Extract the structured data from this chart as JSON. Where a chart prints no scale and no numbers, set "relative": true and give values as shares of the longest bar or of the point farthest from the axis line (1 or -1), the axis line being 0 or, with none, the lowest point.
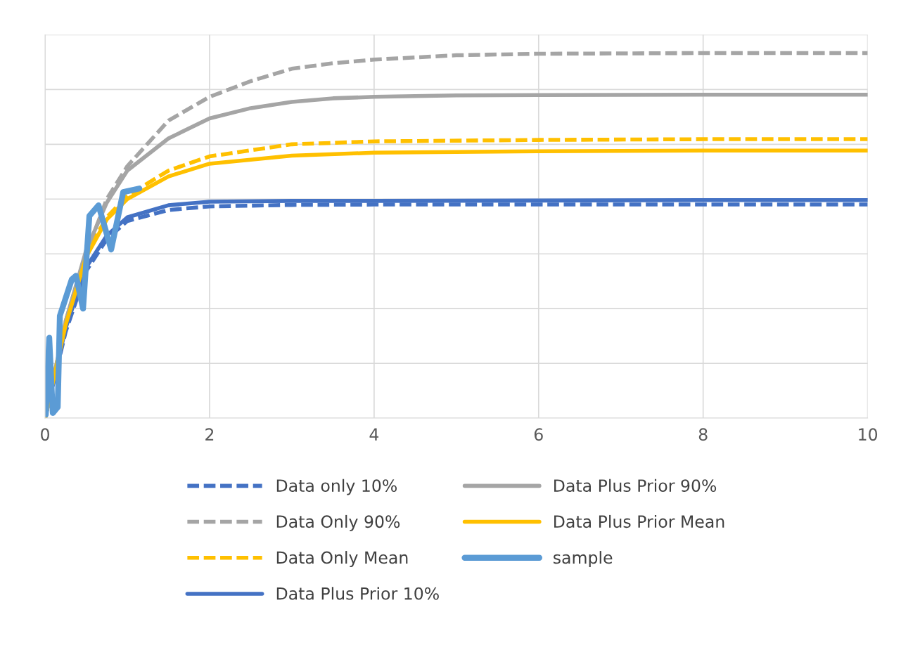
{
  "chart_data": {
    "type": "line",
    "relative": true,
    "xlim": [
      0,
      10
    ],
    "xticks": [
      0,
      2,
      4,
      6,
      8,
      10
    ],
    "grid": true,
    "legend": "bottom",
    "tick_labels": "x",
    "marker": "none",
    "series": [
      {
        "name": "Data only 10%",
        "color": "#4472c4",
        "line_style": "dashed",
        "x": [
          0,
          0.25,
          0.5,
          0.75,
          1,
          1.5,
          2,
          3,
          4,
          6,
          8,
          10
        ],
        "values": [
          0,
          0.236,
          0.403,
          0.49,
          0.54,
          0.57,
          0.58,
          0.584,
          0.585,
          0.585,
          0.585,
          0.585
        ]
      },
      {
        "name": "Data Only 90%",
        "color": "#a5a5a5",
        "line_style": "dashed",
        "x": [
          0,
          0.25,
          0.5,
          0.75,
          1,
          1.5,
          2,
          2.5,
          3,
          3.5,
          4,
          5,
          6,
          8,
          10
        ],
        "values": [
          0,
          0.25,
          0.45,
          0.6,
          0.69,
          0.815,
          0.88,
          0.923,
          0.957,
          0.972,
          0.982,
          0.994,
          0.998,
          1,
          1
        ]
      },
      {
        "name": "Data Only Mean",
        "color": "#ffc000",
        "line_style": "dashed",
        "x": [
          0,
          0.25,
          0.5,
          0.75,
          1,
          1.5,
          2,
          3,
          4,
          6,
          8,
          10
        ],
        "values": [
          0,
          0.265,
          0.45,
          0.55,
          0.609,
          0.678,
          0.717,
          0.75,
          0.758,
          0.762,
          0.764,
          0.764
        ]
      },
      {
        "name": "Data Plus Prior 10%",
        "color": "#4472c4",
        "line_style": "solid",
        "x": [
          0,
          0.25,
          0.5,
          0.75,
          1,
          1.5,
          2,
          3,
          4,
          6,
          8,
          10
        ],
        "values": [
          0,
          0.246,
          0.413,
          0.5,
          0.55,
          0.583,
          0.593,
          0.595,
          0.595,
          0.596,
          0.597,
          0.597
        ]
      },
      {
        "name": "Data Plus Prior 90%",
        "color": "#a5a5a5",
        "line_style": "solid",
        "x": [
          0,
          0.25,
          0.5,
          0.75,
          1,
          1.5,
          2,
          2.5,
          3,
          3.5,
          4,
          5,
          6,
          8,
          10
        ],
        "values": [
          0,
          0.265,
          0.46,
          0.59,
          0.678,
          0.766,
          0.821,
          0.849,
          0.866,
          0.876,
          0.88,
          0.884,
          0.885,
          0.886,
          0.886
        ]
      },
      {
        "name": "Data Plus Prior Mean",
        "color": "#ffc000",
        "line_style": "solid",
        "x": [
          0,
          0.25,
          0.5,
          0.75,
          1,
          1.5,
          2,
          3,
          4,
          6,
          8,
          10
        ],
        "values": [
          0,
          0.255,
          0.442,
          0.544,
          0.6,
          0.662,
          0.697,
          0.719,
          0.727,
          0.731,
          0.733,
          0.733
        ]
      },
      {
        "name": "sample",
        "color": "#5b9bd5",
        "line_style": "solid",
        "x": [
          0,
          0.009,
          0.051,
          0.094,
          0.154,
          0.18,
          0.325,
          0.376,
          0.462,
          0.539,
          0.65,
          0.804,
          0.95,
          1.146
        ],
        "values": [
          0.12,
          0.01,
          0.22,
          0.014,
          0.03,
          0.28,
          0.38,
          0.39,
          0.3,
          0.554,
          0.583,
          0.462,
          0.619,
          0.629
        ]
      }
    ]
  }
}
